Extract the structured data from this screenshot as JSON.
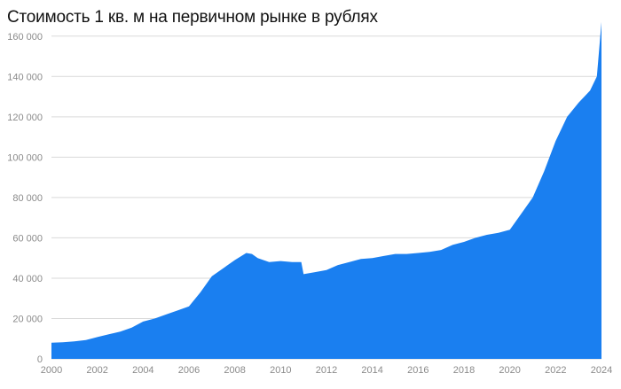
{
  "chart_data": {
    "type": "area",
    "title": "Стоимость 1 кв. м на первичном рынке в рублях",
    "xlabel": "",
    "ylabel": "",
    "xlim": [
      2000,
      2024
    ],
    "ylim": [
      0,
      170000
    ],
    "grid": true,
    "legend": "none",
    "color": "#1a7ff0",
    "x_ticks": [
      "2000",
      "2002",
      "2004",
      "2006",
      "2008",
      "2010",
      "2012",
      "2014",
      "2016",
      "2018",
      "2020",
      "2022",
      "2024"
    ],
    "y_ticks": [
      "0",
      "20 000",
      "40 000",
      "60 000",
      "80 000",
      "100 000",
      "120 000",
      "140 000",
      "160 000"
    ],
    "x": [
      2000,
      2000.5,
      2001,
      2001.5,
      2002,
      2002.5,
      2003,
      2003.5,
      2004,
      2004.5,
      2005,
      2005.5,
      2006,
      2006.5,
      2007,
      2007.5,
      2008,
      2008.5,
      2008.75,
      2009,
      2009.5,
      2010,
      2010.5,
      2010.9,
      2011,
      2011.5,
      2012,
      2012.5,
      2013,
      2013.5,
      2014,
      2014.5,
      2015,
      2015.5,
      2016,
      2016.5,
      2017,
      2017.5,
      2018,
      2018.5,
      2019,
      2019.5,
      2020,
      2020.5,
      2021,
      2021.5,
      2022,
      2022.5,
      2023,
      2023.5,
      2023.8,
      2024
    ],
    "values": [
      8000,
      8200,
      8700,
      9300,
      10800,
      12200,
      13500,
      15500,
      18500,
      20000,
      22000,
      24000,
      26000,
      33000,
      41000,
      45000,
      49000,
      52500,
      52000,
      50000,
      48000,
      48500,
      48000,
      48000,
      42000,
      43000,
      44000,
      46500,
      48000,
      49500,
      50000,
      51000,
      52000,
      52000,
      52500,
      53000,
      54000,
      56500,
      58000,
      60000,
      61500,
      62500,
      64000,
      72000,
      80000,
      93000,
      108000,
      120000,
      127000,
      133000,
      140000,
      167000
    ]
  }
}
